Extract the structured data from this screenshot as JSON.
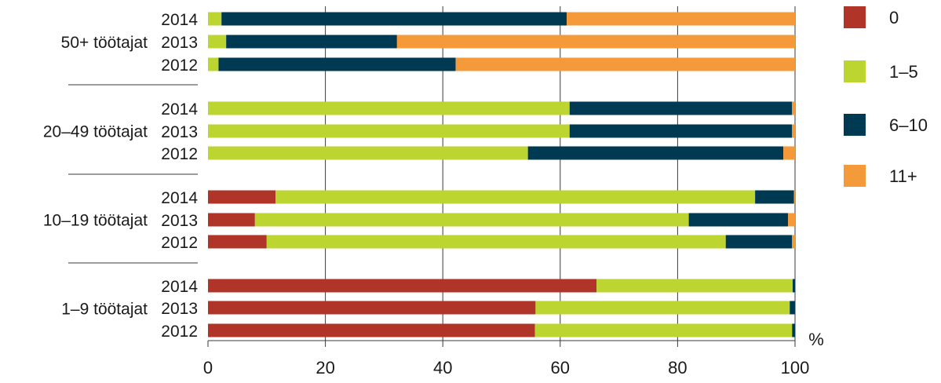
{
  "chart_data": {
    "type": "bar",
    "orientation": "horizontal",
    "stacked": true,
    "unit": "%",
    "xlim": [
      0,
      100
    ],
    "xticks": [
      "0",
      "20",
      "40",
      "60",
      "80",
      "100"
    ],
    "grid": true,
    "legend_position": "right",
    "groups": [
      {
        "label": "50+ töötajat",
        "rows": [
          {
            "year": "2014",
            "values": [
              0,
              2.3,
              58.8,
              38.9
            ]
          },
          {
            "year": "2013",
            "values": [
              0,
              3.1,
              29.1,
              67.8
            ]
          },
          {
            "year": "2012",
            "values": [
              0,
              1.8,
              40.4,
              57.8
            ]
          }
        ]
      },
      {
        "label": "20–49 töötajat",
        "rows": [
          {
            "year": "2014",
            "values": [
              0,
              61.6,
              37.9,
              0.5
            ]
          },
          {
            "year": "2013",
            "values": [
              0,
              61.6,
              37.9,
              0.5
            ]
          },
          {
            "year": "2012",
            "values": [
              0,
              54.5,
              43.5,
              2.0
            ]
          }
        ]
      },
      {
        "label": "10–19 töötajat",
        "rows": [
          {
            "year": "2014",
            "values": [
              11.5,
              81.7,
              6.6,
              0.2
            ]
          },
          {
            "year": "2013",
            "values": [
              8.0,
              73.9,
              16.9,
              1.2
            ]
          },
          {
            "year": "2012",
            "values": [
              10.0,
              78.2,
              11.3,
              0.5
            ]
          }
        ]
      },
      {
        "label": "1–9 töötajat",
        "rows": [
          {
            "year": "2014",
            "values": [
              66.2,
              33.4,
              0.4,
              0
            ]
          },
          {
            "year": "2013",
            "values": [
              55.8,
              43.3,
              0.9,
              0
            ]
          },
          {
            "year": "2012",
            "values": [
              55.7,
              43.8,
              0.5,
              0
            ]
          }
        ]
      }
    ],
    "series": [
      {
        "name": "0",
        "color": "#b03428"
      },
      {
        "name": "1–5",
        "color": "#bdd531"
      },
      {
        "name": "6–10",
        "color": "#003a52"
      },
      {
        "name": "11+",
        "color": "#f59a3b"
      }
    ]
  }
}
